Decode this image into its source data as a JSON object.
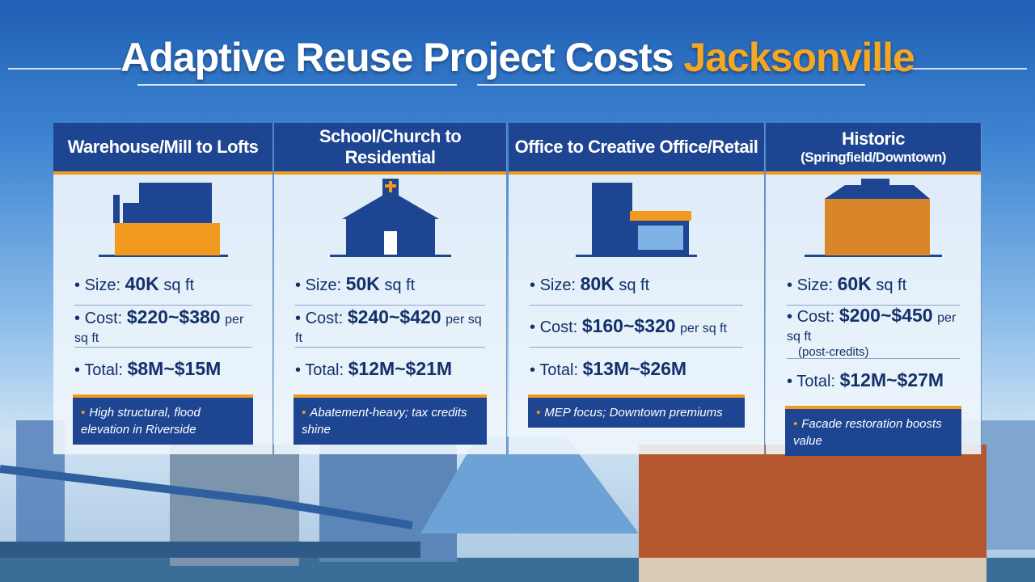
{
  "title": {
    "main": "Adaptive Reuse Project Costs",
    "accent": "Jacksonville"
  },
  "colors": {
    "header": "#1d4591",
    "accent": "#f29a1e",
    "text": "#14306a"
  },
  "cards": [
    {
      "title": "Warehouse/Mill to Lofts",
      "icon": "warehouse-icon",
      "size_label": "Size:",
      "size": "40K",
      "size_unit": "sq ft",
      "cost_label": "Cost:",
      "cost": "$220~$380",
      "cost_unit": "per sq ft",
      "total_label": "Total:",
      "total": "$8M~$15M",
      "note": "High structural, flood elevation in Riverside"
    },
    {
      "title": "School/Church to Residential",
      "icon": "church-icon",
      "size_label": "Size:",
      "size": "50K",
      "size_unit": "sq ft",
      "cost_label": "Cost:",
      "cost": "$240~$420",
      "cost_unit": "per sq ft",
      "total_label": "Total:",
      "total": "$12M~$21M",
      "note": "Abatement-heavy; tax credits shine"
    },
    {
      "title": "Office to Creative Office/Retail",
      "icon": "office-storefront-icon",
      "size_label": "Size:",
      "size": "80K",
      "size_unit": "sq ft",
      "cost_label": "Cost:",
      "cost": "$160~$320",
      "cost_unit": "per sq ft",
      "total_label": "Total:",
      "total": "$13M~$26M",
      "note": "MEP focus; Downtown premiums"
    },
    {
      "title": "Historic",
      "subtitle": "(Springfield/Downtown)",
      "icon": "historic-building-icon",
      "size_label": "Size:",
      "size": "60K",
      "size_unit": "sq ft",
      "cost_label": "Cost:",
      "cost": "$200~$450",
      "cost_unit": "per sq ft",
      "cost_sub": "(post-credits)",
      "total_label": "Total:",
      "total": "$12M~$27M",
      "note": "Facade restoration boosts value"
    }
  ]
}
